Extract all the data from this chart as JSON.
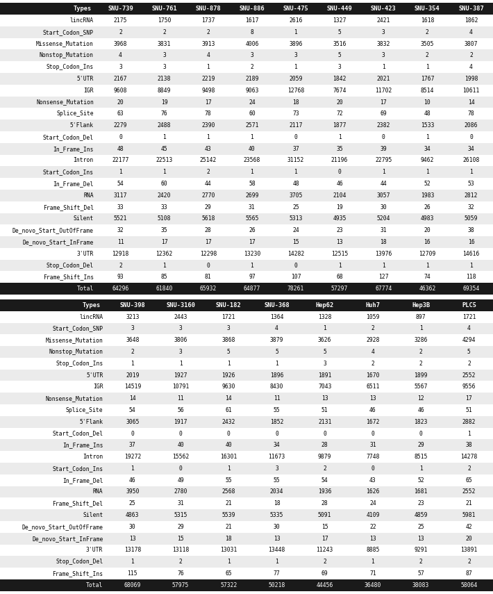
{
  "table1": {
    "columns": [
      "Types",
      "SNU-739",
      "SNU-761",
      "SNU-878",
      "SNU-886",
      "SNU-475",
      "SNU-449",
      "SNU-423",
      "SNU-354",
      "SNU-387"
    ],
    "rows": [
      [
        "lincRNA",
        "2175",
        "1750",
        "1737",
        "1617",
        "2616",
        "1327",
        "2421",
        "1618",
        "1862"
      ],
      [
        "Start_Codon_SNP",
        "2",
        "2",
        "2",
        "8",
        "1",
        "5",
        "3",
        "2",
        "4"
      ],
      [
        "Missense_Mutation",
        "3968",
        "3831",
        "3913",
        "4006",
        "3896",
        "3516",
        "3832",
        "3505",
        "3807"
      ],
      [
        "Nonstop_Mutation",
        "4",
        "3",
        "4",
        "3",
        "3",
        "5",
        "3",
        "2",
        "2"
      ],
      [
        "Stop_Codon_Ins",
        "3",
        "3",
        "1",
        "2",
        "1",
        "3",
        "1",
        "1",
        "4"
      ],
      [
        "5'UTR",
        "2167",
        "2138",
        "2219",
        "2189",
        "2059",
        "1842",
        "2021",
        "1767",
        "1998"
      ],
      [
        "IGR",
        "9608",
        "8849",
        "9498",
        "9063",
        "12768",
        "7674",
        "11702",
        "8514",
        "10611"
      ],
      [
        "Nonsense_Mutation",
        "20",
        "19",
        "17",
        "24",
        "18",
        "20",
        "17",
        "10",
        "14"
      ],
      [
        "Splice_Site",
        "63",
        "76",
        "78",
        "60",
        "73",
        "72",
        "69",
        "48",
        "78"
      ],
      [
        "5'Flank",
        "2279",
        "2488",
        "2390",
        "2571",
        "2117",
        "1877",
        "2382",
        "1533",
        "2086"
      ],
      [
        "Start_Codon_Del",
        "0",
        "1",
        "1",
        "1",
        "0",
        "1",
        "0",
        "1",
        "0"
      ],
      [
        "In_Frame_Ins",
        "48",
        "45",
        "43",
        "40",
        "37",
        "35",
        "39",
        "34",
        "34"
      ],
      [
        "Intron",
        "22177",
        "22513",
        "25142",
        "23568",
        "31152",
        "21196",
        "22795",
        "9462",
        "26108"
      ],
      [
        "Start_Codon_Ins",
        "1",
        "1",
        "2",
        "1",
        "1",
        "0",
        "1",
        "1",
        "1"
      ],
      [
        "In_Frame_Del",
        "54",
        "60",
        "44",
        "58",
        "48",
        "46",
        "44",
        "52",
        "53"
      ],
      [
        "RNA",
        "3117",
        "2420",
        "2770",
        "2699",
        "3705",
        "2104",
        "3057",
        "1983",
        "2812"
      ],
      [
        "Frame_Shift_Del",
        "33",
        "33",
        "29",
        "31",
        "25",
        "19",
        "30",
        "26",
        "32"
      ],
      [
        "Silent",
        "5521",
        "5108",
        "5618",
        "5565",
        "5313",
        "4935",
        "5204",
        "4983",
        "5059"
      ],
      [
        "De_novo_Start_OutOfFrame",
        "32",
        "35",
        "28",
        "26",
        "24",
        "23",
        "31",
        "20",
        "38"
      ],
      [
        "De_novo_Start_InFrame",
        "11",
        "17",
        "17",
        "17",
        "15",
        "13",
        "18",
        "16",
        "16"
      ],
      [
        "3'UTR",
        "12918",
        "12362",
        "12298",
        "13230",
        "14282",
        "12515",
        "13976",
        "12709",
        "14616"
      ],
      [
        "Stop_Codon_Del",
        "2",
        "1",
        "0",
        "1",
        "0",
        "1",
        "1",
        "1",
        "1"
      ],
      [
        "Frame_Shift_Ins",
        "93",
        "85",
        "81",
        "97",
        "107",
        "68",
        "127",
        "74",
        "118"
      ],
      [
        "Total",
        "64296",
        "61840",
        "65932",
        "64877",
        "78261",
        "57297",
        "67774",
        "46362",
        "69354"
      ]
    ]
  },
  "table2": {
    "columns": [
      "Types",
      "SNU-398",
      "SNU-3160",
      "SNU-182",
      "SNU-368",
      "Hep62",
      "Huh7",
      "Hep3B",
      "PLC5"
    ],
    "rows": [
      [
        "lincRNA",
        "3213",
        "2443",
        "1721",
        "1364",
        "1328",
        "1059",
        "897",
        "1721"
      ],
      [
        "Start_Codon_SNP",
        "3",
        "3",
        "3",
        "4",
        "1",
        "2",
        "1",
        "4"
      ],
      [
        "Missense_Mutation",
        "3648",
        "3806",
        "3868",
        "3879",
        "3626",
        "2928",
        "3286",
        "4294"
      ],
      [
        "Nonstop_Mutation",
        "2",
        "3",
        "5",
        "5",
        "5",
        "4",
        "2",
        "5"
      ],
      [
        "Stop_Codon_Ins",
        "1",
        "1",
        "1",
        "1",
        "3",
        "2",
        "2",
        "2"
      ],
      [
        "5'UTR",
        "2019",
        "1927",
        "1926",
        "1896",
        "1891",
        "1670",
        "1899",
        "2552"
      ],
      [
        "IGR",
        "14519",
        "10791",
        "9630",
        "8430",
        "7043",
        "6511",
        "5567",
        "9556"
      ],
      [
        "Nonsense_Mutation",
        "14",
        "11",
        "14",
        "11",
        "13",
        "13",
        "12",
        "17"
      ],
      [
        "Splice_Site",
        "54",
        "56",
        "61",
        "55",
        "51",
        "46",
        "46",
        "51"
      ],
      [
        "5'Flank",
        "3065",
        "1917",
        "2432",
        "1852",
        "2131",
        "1672",
        "1823",
        "2882"
      ],
      [
        "Start_Codon_Del",
        "0",
        "0",
        "0",
        "0",
        "0",
        "0",
        "0",
        "1"
      ],
      [
        "In_Frame_Ins",
        "37",
        "40",
        "40",
        "34",
        "28",
        "31",
        "29",
        "38"
      ],
      [
        "Intron",
        "19272",
        "15562",
        "16301",
        "11673",
        "9879",
        "7748",
        "8515",
        "14278"
      ],
      [
        "Start_Codon_Ins",
        "1",
        "0",
        "1",
        "3",
        "2",
        "0",
        "1",
        "2"
      ],
      [
        "In_Frame_Del",
        "46",
        "49",
        "55",
        "55",
        "54",
        "43",
        "52",
        "65"
      ],
      [
        "RNA",
        "3950",
        "2780",
        "2568",
        "2034",
        "1936",
        "1626",
        "1681",
        "2552"
      ],
      [
        "Frame_Shift_Del",
        "25",
        "31",
        "21",
        "18",
        "28",
        "24",
        "23",
        "21"
      ],
      [
        "Silent",
        "4863",
        "5315",
        "5539",
        "5335",
        "5091",
        "4109",
        "4859",
        "5981"
      ],
      [
        "De_novo_Start_OutOfFrame",
        "30",
        "29",
        "21",
        "30",
        "15",
        "22",
        "25",
        "42"
      ],
      [
        "De_novo_Start_InFrame",
        "13",
        "15",
        "18",
        "13",
        "17",
        "13",
        "13",
        "20"
      ],
      [
        "3'UTR",
        "13178",
        "13118",
        "13031",
        "13448",
        "11243",
        "8885",
        "9291",
        "13891"
      ],
      [
        "Stop_Codon_Del",
        "1",
        "2",
        "1",
        "1",
        "2",
        "1",
        "2",
        "2"
      ],
      [
        "Frame_Shift_Ins",
        "115",
        "76",
        "65",
        "77",
        "69",
        "71",
        "57",
        "87"
      ],
      [
        "Total",
        "68069",
        "57975",
        "57322",
        "50218",
        "44456",
        "36480",
        "38083",
        "58064"
      ]
    ]
  },
  "header_bg": "#1a1a1a",
  "header_fg": "#ffffff",
  "total_bg": "#1a1a1a",
  "total_fg": "#ffffff",
  "row_bg_odd": "#ffffff",
  "row_bg_even": "#ebebeb",
  "row_fg": "#000000",
  "font_size": 5.8,
  "header_font_size": 6.2
}
